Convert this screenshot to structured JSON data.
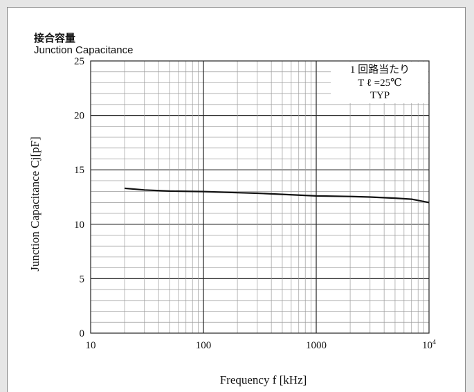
{
  "title": "接合容量",
  "subtitle": "Junction Capacitance",
  "chart_data": {
    "type": "line",
    "xscale": "log",
    "xlim": [
      10,
      10000
    ],
    "ylim": [
      0,
      25
    ],
    "xlabel": "Frequency f [kHz]",
    "ylabel": "Junction Capacitance Cj[pF]",
    "x_ticks": [
      {
        "value": 10,
        "label": "10"
      },
      {
        "value": 100,
        "label": "100"
      },
      {
        "value": 1000,
        "label": "1000"
      },
      {
        "value": 10000,
        "label": "10",
        "sup": "4"
      }
    ],
    "y_ticks": [
      0,
      5,
      10,
      15,
      20,
      25
    ],
    "grid": true,
    "annotation": {
      "lines": [
        "1 回路当たり",
        "T ℓ =25℃",
        "TYP"
      ],
      "position": "top-right"
    },
    "series": [
      {
        "x": [
          20,
          30,
          50,
          100,
          200,
          300,
          500,
          1000,
          2000,
          3000,
          5000,
          7000,
          10000
        ],
        "y": [
          13.3,
          13.15,
          13.05,
          13.0,
          12.9,
          12.85,
          12.75,
          12.6,
          12.55,
          12.5,
          12.4,
          12.3,
          12.0
        ]
      }
    ],
    "colors": {
      "line": "#111111",
      "grid_minor": "#9a9a9a",
      "grid_major": "#222222"
    }
  }
}
